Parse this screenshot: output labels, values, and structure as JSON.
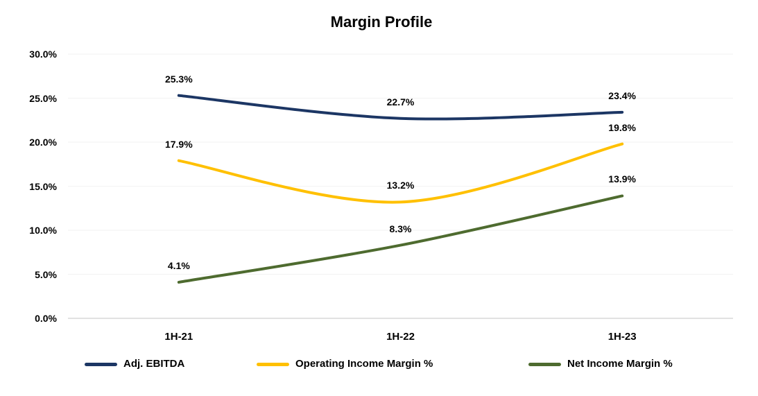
{
  "title": "Margin Profile",
  "chart_data": {
    "type": "line",
    "title": "Margin Profile",
    "categories": [
      "1H-21",
      "1H-22",
      "1H-23"
    ],
    "series": [
      {
        "name": "Adj. EBITDA",
        "color": "#1C3664",
        "values": [
          25.3,
          22.7,
          23.4
        ],
        "labels": [
          "25.3%",
          "22.7%",
          "23.4%"
        ]
      },
      {
        "name": "Operating Income Margin %",
        "color": "#FFC000",
        "values": [
          17.9,
          13.2,
          19.8
        ],
        "labels": [
          "17.9%",
          "13.2%",
          "19.8%"
        ]
      },
      {
        "name": "Net Income Margin %",
        "color": "#4E6B2F",
        "values": [
          4.1,
          8.3,
          13.9
        ],
        "labels": [
          "4.1%",
          "8.3%",
          "13.9%"
        ]
      }
    ],
    "y_axis": {
      "tick_labels": [
        "30.0%",
        "25.0%",
        "20.0%",
        "15.0%",
        "10.0%",
        "5.0%",
        "0.0%"
      ],
      "min": 0,
      "max": 30,
      "step": 5
    },
    "grid": true,
    "smooth_lines": true,
    "legend_position": "bottom",
    "colors": {
      "background": "#FFFFFF",
      "gridline": "#F2F2F2",
      "axis_line": "#D9D9D9",
      "text": "#000000"
    }
  }
}
